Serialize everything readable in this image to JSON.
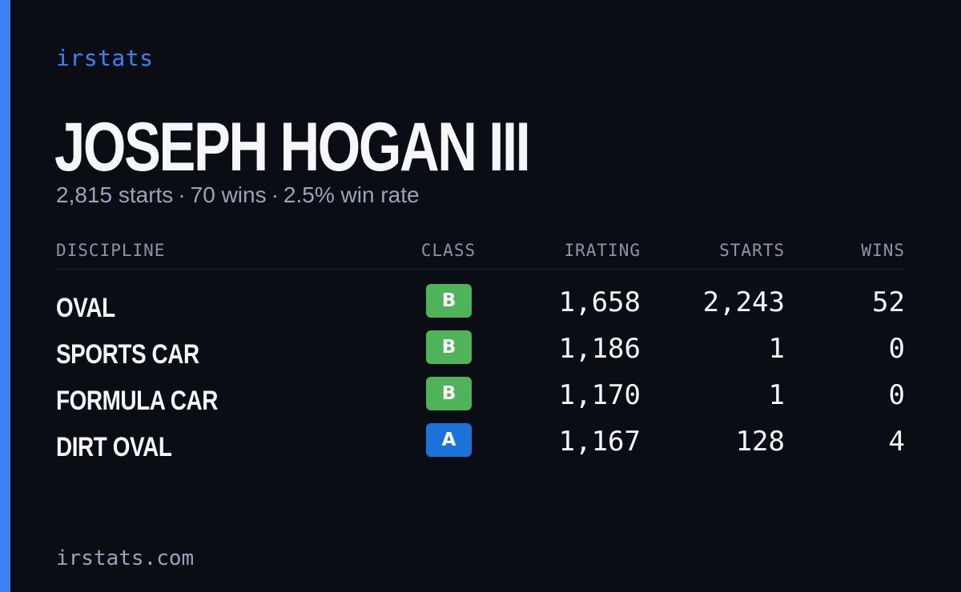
{
  "brand": "irstats",
  "driver": {
    "name": "JOSEPH HOGAN III"
  },
  "summary": {
    "starts": "2,815 starts",
    "wins": "70 wins",
    "win_rate": "2.5% win rate",
    "separator": "·"
  },
  "table": {
    "headers": {
      "discipline": "DISCIPLINE",
      "class": "CLASS",
      "irating": "IRATING",
      "starts": "STARTS",
      "wins": "WINS"
    },
    "rows": [
      {
        "discipline": "OVAL",
        "class": "B",
        "irating": "1,658",
        "starts": "2,243",
        "wins": "52"
      },
      {
        "discipline": "SPORTS CAR",
        "class": "B",
        "irating": "1,186",
        "starts": "1",
        "wins": "0"
      },
      {
        "discipline": "FORMULA CAR",
        "class": "B",
        "irating": "1,170",
        "starts": "1",
        "wins": "0"
      },
      {
        "discipline": "DIRT OVAL",
        "class": "A",
        "irating": "1,167",
        "starts": "128",
        "wins": "4"
      }
    ]
  },
  "footer": {
    "url": "irstats.com"
  },
  "colors": {
    "background": "#0a0d14",
    "accent": "#3b82f6",
    "class_b": "#4fb35a",
    "class_a": "#1a73d9",
    "muted_text": "#9aa4b8"
  }
}
